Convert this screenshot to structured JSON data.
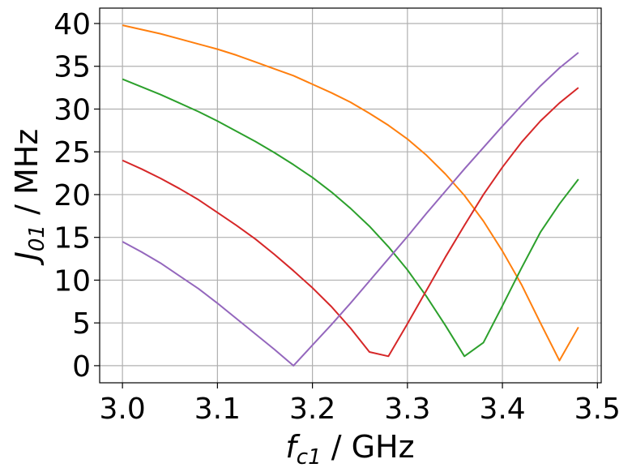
{
  "chart_data": {
    "type": "line",
    "title": "",
    "xlabel_main": "f",
    "xlabel_sub": "c1",
    "xlabel_unit": " / GHz",
    "ylabel_main": "J",
    "ylabel_sub": "01",
    "ylabel_unit": " / MHz",
    "xlim": [
      2.976,
      3.504
    ],
    "ylim": [
      -2,
      41.8
    ],
    "xticks": [
      3.0,
      3.1,
      3.2,
      3.3,
      3.4,
      3.5
    ],
    "xtick_labels": [
      "3.0",
      "3.1",
      "3.2",
      "3.3",
      "3.4",
      "3.5"
    ],
    "yticks": [
      0,
      5,
      10,
      15,
      20,
      25,
      30,
      35,
      40
    ],
    "ytick_labels": [
      "0",
      "5",
      "10",
      "15",
      "20",
      "25",
      "30",
      "35",
      "40"
    ],
    "grid": true,
    "legend": "none",
    "series": [
      {
        "color": "#ff7f0e",
        "x": [
          3.0,
          3.02,
          3.04,
          3.06,
          3.08,
          3.1,
          3.12,
          3.14,
          3.16,
          3.18,
          3.2,
          3.22,
          3.24,
          3.26,
          3.28,
          3.3,
          3.32,
          3.34,
          3.36,
          3.38,
          3.4,
          3.42,
          3.44,
          3.46,
          3.48
        ],
        "y": [
          39.8,
          39.3,
          38.8,
          38.2,
          37.6,
          37.0,
          36.3,
          35.5,
          34.7,
          33.9,
          32.9,
          31.9,
          30.8,
          29.5,
          28.1,
          26.5,
          24.6,
          22.4,
          19.9,
          16.9,
          13.4,
          9.5,
          5.0,
          0.6,
          4.5
        ]
      },
      {
        "color": "#2ca02c",
        "x": [
          3.0,
          3.02,
          3.04,
          3.06,
          3.08,
          3.1,
          3.12,
          3.14,
          3.16,
          3.18,
          3.2,
          3.22,
          3.24,
          3.26,
          3.28,
          3.3,
          3.32,
          3.34,
          3.36,
          3.38,
          3.4,
          3.42,
          3.44,
          3.46,
          3.48
        ],
        "y": [
          33.5,
          32.6,
          31.7,
          30.7,
          29.7,
          28.6,
          27.4,
          26.2,
          24.9,
          23.5,
          22.0,
          20.3,
          18.4,
          16.3,
          13.9,
          11.2,
          8.1,
          4.7,
          1.1,
          2.7,
          7.0,
          11.4,
          15.6,
          18.9,
          21.8
        ]
      },
      {
        "color": "#d62728",
        "x": [
          3.0,
          3.02,
          3.04,
          3.06,
          3.08,
          3.1,
          3.12,
          3.14,
          3.16,
          3.18,
          3.2,
          3.22,
          3.24,
          3.26,
          3.28,
          3.3,
          3.32,
          3.34,
          3.36,
          3.38,
          3.4,
          3.42,
          3.44,
          3.46,
          3.48
        ],
        "y": [
          24.0,
          23.0,
          21.9,
          20.7,
          19.4,
          17.9,
          16.4,
          14.8,
          13.0,
          11.1,
          9.1,
          6.9,
          4.4,
          1.6,
          1.1,
          4.9,
          8.8,
          12.7,
          16.4,
          20.0,
          23.2,
          26.1,
          28.6,
          30.7,
          32.5
        ]
      },
      {
        "color": "#9467bd",
        "x": [
          3.0,
          3.02,
          3.04,
          3.06,
          3.08,
          3.1,
          3.12,
          3.14,
          3.16,
          3.18,
          3.2,
          3.22,
          3.24,
          3.26,
          3.28,
          3.3,
          3.32,
          3.34,
          3.36,
          3.38,
          3.4,
          3.42,
          3.44,
          3.46,
          3.48
        ],
        "y": [
          14.5,
          13.3,
          12.0,
          10.5,
          9.0,
          7.3,
          5.5,
          3.7,
          1.9,
          0.0,
          2.4,
          4.8,
          7.3,
          9.9,
          12.5,
          15.1,
          17.8,
          20.4,
          23.0,
          25.5,
          28.0,
          30.4,
          32.7,
          34.8,
          36.6
        ]
      }
    ]
  }
}
